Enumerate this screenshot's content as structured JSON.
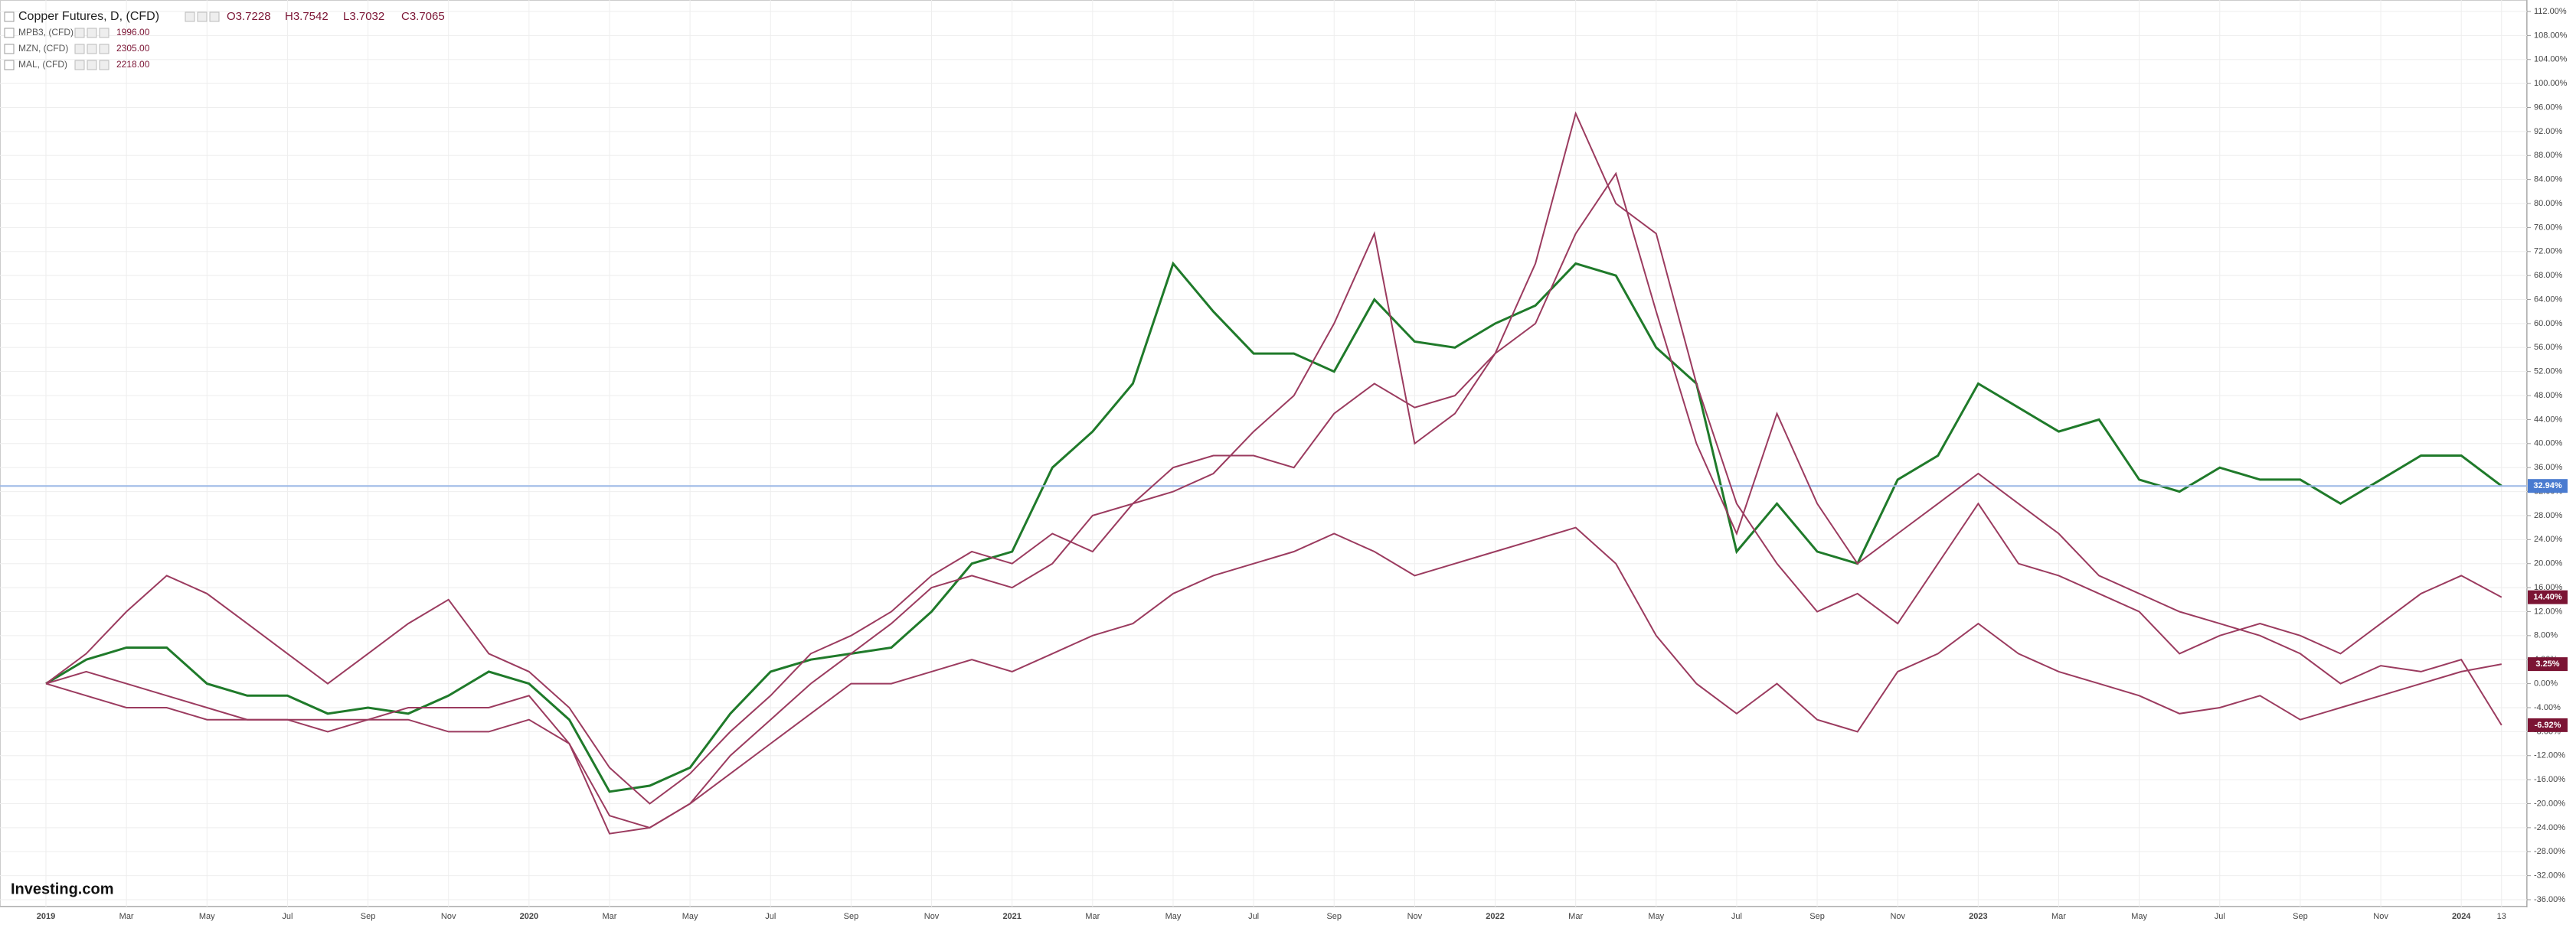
{
  "chart_data": {
    "type": "line",
    "logo": "Investing.com",
    "ohlc": [
      "O3.7228",
      "H3.7542",
      "L3.7032",
      "C3.7065"
    ],
    "categories": [
      "2019",
      null,
      "Mar",
      null,
      "May",
      null,
      "Jul",
      null,
      "Sep",
      null,
      "Nov",
      null,
      "2020",
      null,
      "Mar",
      null,
      "May",
      null,
      "Jul",
      null,
      "Sep",
      null,
      "Nov",
      null,
      "2021",
      null,
      "Mar",
      null,
      "May",
      null,
      "Jul",
      null,
      "Sep",
      null,
      "Nov",
      null,
      "2022",
      null,
      "Mar",
      null,
      "May",
      null,
      "Jul",
      null,
      "Sep",
      null,
      "Nov",
      null,
      "2023",
      null,
      "Mar",
      null,
      "May",
      null,
      "Jul",
      null,
      "Sep",
      null,
      "Nov",
      null,
      "2024",
      "13"
    ],
    "series": [
      {
        "name": "Copper Futures, D, (CFD)",
        "color": "#1f7a2a",
        "badge_color": "#4a7bd0",
        "values": [
          0,
          4,
          6,
          6,
          0,
          -2,
          -2,
          -5,
          -4,
          -5,
          -2,
          2,
          0,
          -6,
          -18,
          -17,
          -14,
          -5,
          2,
          4,
          5,
          6,
          12,
          20,
          22,
          36,
          42,
          50,
          70,
          62,
          55,
          55,
          52,
          64,
          57,
          56,
          60,
          63,
          70,
          68,
          56,
          50,
          22,
          30,
          22,
          20,
          34,
          38,
          50,
          46,
          42,
          44,
          34,
          32,
          36,
          34,
          34,
          30,
          34,
          38,
          38,
          32.94
        ],
        "value_labels": [
          null,
          null,
          null,
          null,
          null,
          null,
          null,
          null,
          null,
          null,
          null,
          null,
          null,
          null,
          null,
          null,
          null,
          null,
          null,
          null,
          null,
          null,
          null,
          null,
          null,
          null,
          null,
          null,
          null,
          null,
          null,
          null,
          null,
          null,
          null,
          null,
          null,
          null,
          null,
          null,
          null,
          null,
          null,
          null,
          null,
          null,
          null,
          null,
          null,
          null,
          null,
          null,
          null,
          null,
          null,
          null,
          null,
          null,
          null,
          null,
          null,
          "32.94%"
        ]
      },
      {
        "name": "MPB3, (CFD)",
        "legend_value": "1996.00",
        "color": "#9b3b5f",
        "badge_color": "#7b1434",
        "values": [
          0,
          -2,
          -4,
          -4,
          -6,
          -6,
          -6,
          -6,
          -6,
          -6,
          -8,
          -8,
          -6,
          -10,
          -22,
          -24,
          -20,
          -15,
          -10,
          -5,
          0,
          0,
          2,
          4,
          2,
          5,
          8,
          10,
          15,
          18,
          20,
          22,
          25,
          22,
          18,
          20,
          22,
          24,
          26,
          20,
          8,
          0,
          -5,
          0,
          -6,
          -8,
          2,
          5,
          10,
          5,
          2,
          0,
          -2,
          -5,
          -4,
          -2,
          -6,
          -4,
          -2,
          0,
          2,
          3.25
        ],
        "value_labels": [
          null,
          null,
          null,
          null,
          null,
          null,
          null,
          null,
          null,
          null,
          null,
          null,
          null,
          null,
          null,
          null,
          null,
          null,
          null,
          null,
          null,
          null,
          null,
          null,
          null,
          null,
          null,
          null,
          null,
          null,
          null,
          null,
          null,
          null,
          null,
          null,
          null,
          null,
          null,
          null,
          null,
          null,
          null,
          null,
          null,
          null,
          null,
          null,
          null,
          null,
          null,
          null,
          null,
          null,
          null,
          null,
          null,
          null,
          null,
          null,
          null,
          "3.25%"
        ]
      },
      {
        "name": "MZN, (CFD)",
        "legend_value": "2305.00",
        "color": "#9b3b5f",
        "badge_color": "#7b1434",
        "values": [
          0,
          2,
          0,
          -2,
          -4,
          -6,
          -6,
          -8,
          -6,
          -4,
          -4,
          -4,
          -2,
          -10,
          -25,
          -24,
          -20,
          -12,
          -6,
          0,
          5,
          10,
          16,
          18,
          16,
          20,
          28,
          30,
          36,
          38,
          38,
          36,
          45,
          50,
          46,
          48,
          55,
          60,
          75,
          85,
          62,
          40,
          25,
          45,
          30,
          20,
          25,
          30,
          35,
          30,
          25,
          18,
          15,
          12,
          10,
          8,
          5,
          0,
          3,
          2,
          4,
          -6.92
        ],
        "value_labels": [
          null,
          null,
          null,
          null,
          null,
          null,
          null,
          null,
          null,
          null,
          null,
          null,
          null,
          null,
          null,
          null,
          null,
          null,
          null,
          null,
          null,
          null,
          null,
          null,
          null,
          null,
          null,
          null,
          null,
          null,
          null,
          null,
          null,
          null,
          null,
          null,
          null,
          null,
          null,
          null,
          null,
          null,
          null,
          null,
          null,
          null,
          null,
          null,
          null,
          null,
          null,
          null,
          null,
          null,
          null,
          null,
          null,
          null,
          null,
          null,
          null,
          "-6.92%"
        ]
      },
      {
        "name": "MAL, (CFD)",
        "legend_value": "2218.00",
        "color": "#9b3b5f",
        "badge_color": "#7b1434",
        "values": [
          0,
          5,
          12,
          18,
          15,
          10,
          5,
          0,
          5,
          10,
          14,
          5,
          2,
          -4,
          -14,
          -20,
          -15,
          -8,
          -2,
          5,
          8,
          12,
          18,
          22,
          20,
          25,
          22,
          30,
          32,
          35,
          42,
          48,
          60,
          75,
          40,
          45,
          55,
          70,
          95,
          80,
          75,
          50,
          30,
          20,
          12,
          15,
          10,
          20,
          30,
          20,
          18,
          15,
          12,
          5,
          8,
          10,
          8,
          5,
          10,
          15,
          18,
          14.4
        ],
        "value_labels": [
          null,
          null,
          null,
          null,
          null,
          null,
          null,
          null,
          null,
          null,
          null,
          null,
          null,
          null,
          null,
          null,
          null,
          null,
          null,
          null,
          null,
          null,
          null,
          null,
          null,
          null,
          null,
          null,
          null,
          null,
          null,
          null,
          null,
          null,
          null,
          null,
          null,
          null,
          null,
          null,
          null,
          null,
          null,
          null,
          null,
          null,
          null,
          null,
          null,
          null,
          null,
          null,
          null,
          null,
          null,
          null,
          null,
          null,
          null,
          null,
          null,
          "14.40%"
        ]
      }
    ],
    "ylim": [
      -36,
      112
    ],
    "yticks": [
      {
        "value": 112,
        "label": "112.00%"
      },
      {
        "value": 108,
        "label": "108.00%"
      },
      {
        "value": 104,
        "label": "104.00%"
      },
      {
        "value": 100,
        "label": "100.00%"
      },
      {
        "value": 96,
        "label": "96.00%"
      },
      {
        "value": 92,
        "label": "92.00%"
      },
      {
        "value": 88,
        "label": "88.00%"
      },
      {
        "value": 84,
        "label": "84.00%"
      },
      {
        "value": 80,
        "label": "80.00%"
      },
      {
        "value": 76,
        "label": "76.00%"
      },
      {
        "value": 72,
        "label": "72.00%"
      },
      {
        "value": 68,
        "label": "68.00%"
      },
      {
        "value": 64,
        "label": "64.00%"
      },
      {
        "value": 60,
        "label": "60.00%"
      },
      {
        "value": 56,
        "label": "56.00%"
      },
      {
        "value": 52,
        "label": "52.00%"
      },
      {
        "value": 48,
        "label": "48.00%"
      },
      {
        "value": 44,
        "label": "44.00%"
      },
      {
        "value": 40,
        "label": "40.00%"
      },
      {
        "value": 36,
        "label": "36.00%"
      },
      {
        "value": 32,
        "label": "32.00%"
      },
      {
        "value": 28,
        "label": "28.00%"
      },
      {
        "value": 24,
        "label": "24.00%"
      },
      {
        "value": 20,
        "label": "20.00%"
      },
      {
        "value": 16,
        "label": "16.00%"
      },
      {
        "value": 12,
        "label": "12.00%"
      },
      {
        "value": 8,
        "label": "8.00%"
      },
      {
        "value": 4,
        "label": "4.00%"
      },
      {
        "value": 0,
        "label": "0.00%"
      },
      {
        "value": -4,
        "label": "-4.00%"
      },
      {
        "value": -8,
        "label": "-8.00%"
      },
      {
        "value": -12,
        "label": "-12.00%"
      },
      {
        "value": -16,
        "label": "-16.00%"
      },
      {
        "value": -20,
        "label": "-20.00%"
      },
      {
        "value": -24,
        "label": "-24.00%"
      },
      {
        "value": -28,
        "label": "-28.00%"
      },
      {
        "value": -32,
        "label": "-32.00%"
      },
      {
        "value": -36,
        "label": "-36.00%"
      }
    ],
    "grid": true
  }
}
